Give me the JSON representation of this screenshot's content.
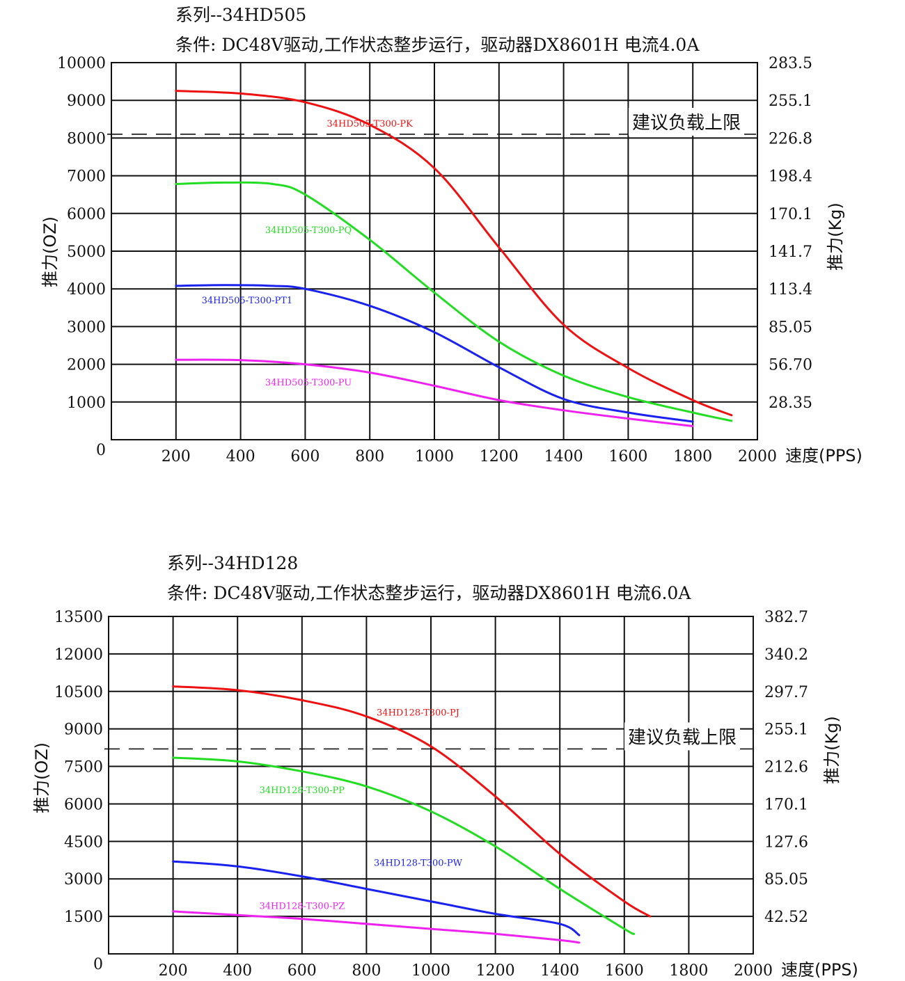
{
  "charts": [
    {
      "series_title": "系列--34HD505",
      "conditions": "条件: DC48V驱动,工作状态整步运行，驱动器DX8601H 电流4.0A"
    },
    {
      "series_title": "系列--34HD128",
      "conditions": "条件: DC48V驱动,工作状态整步运行，驱动器DX8601H 电流6.0A"
    }
  ],
  "chart_data": [
    {
      "type": "line",
      "xlabel": "速度(PPS)",
      "ylabel": "推力(OZ)",
      "y2label": "推力(Kg)",
      "xlim": [
        0,
        2000
      ],
      "ylim": [
        0,
        10000
      ],
      "x_ticks": [
        "200",
        "400",
        "600",
        "800",
        "1000",
        "1200",
        "1400",
        "1600",
        "1800",
        "2000"
      ],
      "y_ticks": [
        "0",
        "1000",
        "2000",
        "3000",
        "4000",
        "5000",
        "6000",
        "7000",
        "8000",
        "9000",
        "10000"
      ],
      "y_tick_values": [
        0,
        1000,
        2000,
        3000,
        4000,
        5000,
        6000,
        7000,
        8000,
        9000,
        10000
      ],
      "y2_ticks": [
        "28.35",
        "56.70",
        "85.05",
        "113.4",
        "141.7",
        "170.1",
        "198.4",
        "226.8",
        "255.1",
        "283.5"
      ],
      "y2_tick_values": [
        1000,
        2000,
        3000,
        4000,
        5000,
        6000,
        7000,
        8000,
        9000,
        10000
      ],
      "grid": true,
      "limit": {
        "label": "建议负载上限",
        "value": 8100
      },
      "series": [
        {
          "name": "34HD505-T300-PK",
          "color": "#ee1111",
          "label_at": [
            800,
            8300
          ],
          "x": [
            200,
            400,
            600,
            800,
            1000,
            1200,
            1400,
            1600,
            1800,
            1920
          ],
          "y": [
            9250,
            9180,
            8950,
            8350,
            7200,
            5100,
            3050,
            1900,
            1050,
            650
          ]
        },
        {
          "name": "34HD505-T300-PQ",
          "color": "#22dd22",
          "label_at": [
            610,
            5480
          ],
          "x": [
            200,
            350,
            500,
            600,
            800,
            1000,
            1200,
            1400,
            1600,
            1800,
            1920
          ],
          "y": [
            6780,
            6820,
            6780,
            6500,
            5300,
            3900,
            2600,
            1700,
            1130,
            720,
            500
          ]
        },
        {
          "name": "34HD505-T300-PT1",
          "color": "#1a22ee",
          "label_at": [
            420,
            3620
          ],
          "x": [
            200,
            350,
            500,
            600,
            800,
            1000,
            1200,
            1400,
            1600,
            1800
          ],
          "y": [
            4080,
            4100,
            4080,
            4000,
            3550,
            2850,
            1920,
            1080,
            720,
            480
          ]
        },
        {
          "name": "34HD505-T300-PU",
          "color": "#ee22ee",
          "label_at": [
            610,
            1440
          ],
          "x": [
            200,
            400,
            600,
            800,
            1000,
            1200,
            1400,
            1600,
            1800
          ],
          "y": [
            2120,
            2110,
            2000,
            1780,
            1430,
            1050,
            780,
            560,
            360
          ]
        }
      ]
    },
    {
      "type": "line",
      "xlabel": "速度(PPS)",
      "ylabel": "推力(OZ)",
      "y2label": "推力(Kg)",
      "xlim": [
        0,
        2000
      ],
      "ylim": [
        0,
        13500
      ],
      "x_ticks": [
        "200",
        "400",
        "600",
        "800",
        "1000",
        "1200",
        "1400",
        "1600",
        "1800",
        "2000"
      ],
      "y_ticks": [
        "0",
        "1500",
        "3000",
        "4500",
        "6000",
        "7500",
        "9000",
        "10500",
        "12000",
        "13500"
      ],
      "y_tick_values": [
        0,
        1500,
        3000,
        4500,
        6000,
        7500,
        9000,
        10500,
        12000,
        13500
      ],
      "y2_ticks": [
        "42.52",
        "85.05",
        "127.6",
        "170.1",
        "212.6",
        "255.1",
        "297.7",
        "340.2",
        "382.7"
      ],
      "y2_tick_values": [
        1500,
        3000,
        4500,
        6000,
        7500,
        9000,
        10500,
        12000,
        13500
      ],
      "grid": true,
      "limit": {
        "label": "建议负载上限",
        "value": 8200
      },
      "series": [
        {
          "name": "34HD128-T300-PJ",
          "color": "#ee1111",
          "label_at": [
            960,
            9540
          ],
          "x": [
            200,
            400,
            600,
            800,
            1000,
            1200,
            1400,
            1600,
            1680
          ],
          "y": [
            10700,
            10550,
            10150,
            9500,
            8300,
            6300,
            4000,
            2100,
            1500
          ]
        },
        {
          "name": "34HD128-T300-PP",
          "color": "#22dd22",
          "label_at": [
            600,
            6430
          ],
          "x": [
            200,
            400,
            600,
            800,
            1000,
            1200,
            1400,
            1600,
            1630
          ],
          "y": [
            7850,
            7700,
            7300,
            6700,
            5700,
            4300,
            2600,
            1000,
            800
          ]
        },
        {
          "name": "34HD128-T300-PW",
          "color": "#1a22ee",
          "label_at": [
            960,
            3520
          ],
          "x": [
            200,
            400,
            600,
            800,
            1000,
            1200,
            1400,
            1460
          ],
          "y": [
            3700,
            3500,
            3100,
            2600,
            2100,
            1600,
            1200,
            750
          ]
        },
        {
          "name": "34HD128-T300-PZ",
          "color": "#ee22ee",
          "label_at": [
            600,
            1790
          ],
          "x": [
            200,
            400,
            600,
            800,
            1000,
            1200,
            1400,
            1460
          ],
          "y": [
            1700,
            1550,
            1400,
            1200,
            1000,
            800,
            550,
            450
          ]
        }
      ]
    }
  ]
}
